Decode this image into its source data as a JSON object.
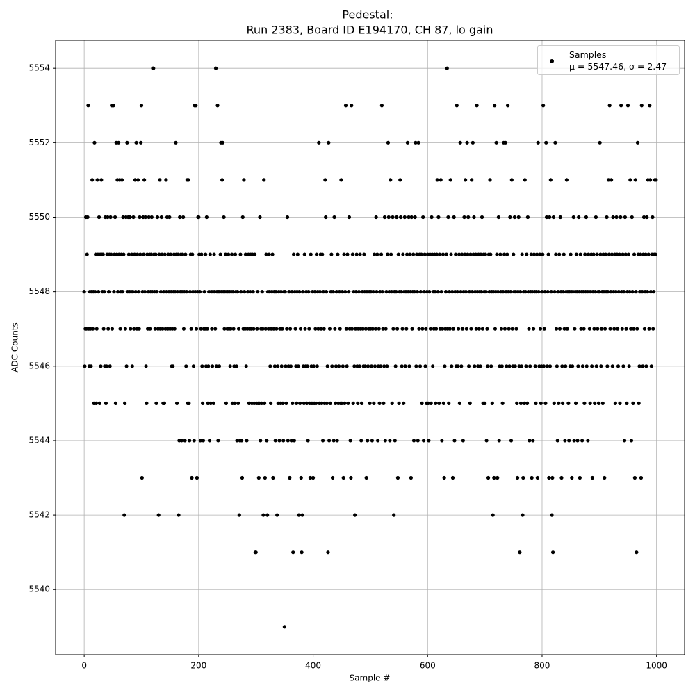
{
  "chart_data": {
    "type": "scatter",
    "title": "Pedestal:",
    "subtitle": "Run 2383, Board ID E194170, CH 87, lo gain",
    "x_label": "Sample #",
    "y_label": "ADC Counts",
    "xlim": [
      -49.95,
      1048.95
    ],
    "ylim": [
      5538.25,
      5554.75
    ],
    "xticks": [
      0,
      200,
      400,
      600,
      800,
      1000
    ],
    "yticks": [
      5540,
      5542,
      5544,
      5546,
      5548,
      5550,
      5552,
      5554
    ],
    "grid": true,
    "legend_position": "upper right",
    "series": [
      {
        "name": "Samples\nμ = 5547.46, σ = 2.47",
        "color": "#000000",
        "values": [
          5548,
          5546,
          5547,
          5550,
          5547,
          5549,
          5550,
          5553,
          5547,
          5546,
          5548,
          5547,
          5546,
          5548,
          5551,
          5547,
          5548,
          5545,
          5552,
          5548,
          5549,
          5545,
          5547,
          5551,
          5549,
          5548,
          5550,
          5545,
          5549,
          5546,
          5551,
          5549,
          5548,
          5549,
          5547,
          5548,
          5546,
          5550,
          5545,
          5546,
          5549,
          5550,
          5547,
          5548,
          5549,
          5546,
          5550,
          5549,
          5553,
          5547,
          5553,
          5553,
          5548,
          5549,
          5550,
          5545,
          5552,
          5549,
          5551,
          5548,
          5552,
          5549,
          5551,
          5547,
          5548,
          5549,
          5551,
          5548,
          5550,
          5549,
          5542,
          5545,
          5547,
          5550,
          5546,
          5552,
          5548,
          5550,
          5549,
          5548,
          5550,
          5547,
          5548,
          5549,
          5546,
          5548,
          5550,
          5547,
          5549,
          5551,
          5548,
          5552,
          5547,
          5549,
          5551,
          5548,
          5547,
          5550,
          5549,
          5552,
          5553,
          5543,
          5548,
          5550,
          5549,
          5551,
          5548,
          5550,
          5546,
          5545,
          5549,
          5547,
          5548,
          5550,
          5549,
          5547,
          5548,
          5549,
          5550,
          5548,
          5554,
          5554,
          5549,
          5548,
          5547,
          5549,
          5545,
          5548,
          5550,
          5547,
          5542,
          5549,
          5551,
          5547,
          5548,
          5550,
          5549,
          5547,
          5545,
          5548,
          5545,
          5549,
          5547,
          5551,
          5548,
          5550,
          5547,
          5549,
          5548,
          5550,
          5547,
          5549,
          5548,
          5546,
          5547,
          5546,
          5548,
          5549,
          5547,
          5548,
          5552,
          5549,
          5545,
          5548,
          5549,
          5542,
          5544,
          5550,
          5548,
          5549,
          5544,
          5548,
          5549,
          5550,
          5547,
          5548,
          5544,
          5549,
          5546,
          5548,
          5551,
          5545,
          5551,
          5545,
          5544,
          5548,
          5549,
          5547,
          5543,
          5549,
          5548,
          5546,
          5544,
          5553,
          5548,
          5553,
          5547,
          5543,
          5548,
          5550,
          5550,
          5549,
          5548,
          5544,
          5547,
          5549,
          5546,
          5545,
          5544,
          5547,
          5548,
          5547,
          5549,
          5546,
          5550,
          5547,
          5545,
          5546,
          5548,
          5544,
          5549,
          5545,
          5548,
          5547,
          5546,
          5548,
          5545,
          5549,
          5548,
          5547,
          5554,
          5546,
          5548,
          5553,
          5544,
          5548,
          5546,
          5548,
          5549,
          5552,
          5548,
          5551,
          5552,
          5548,
          5550,
          5547,
          5548,
          5549,
          5545,
          5548,
          5547,
          5548,
          5549,
          5547,
          5548,
          5546,
          5547,
          5548,
          5549,
          5545,
          5548,
          5547,
          5546,
          5545,
          5549,
          5548,
          5546,
          5544,
          5548,
          5545,
          5547,
          5542,
          5544,
          5549,
          5548,
          5544,
          5543,
          5550,
          5547,
          5551,
          5548,
          5547,
          5549,
          5546,
          5544,
          5547,
          5548,
          5549,
          5545,
          5547,
          5548,
          5549,
          5547,
          5545,
          5549,
          5548,
          5547,
          5545,
          5549,
          5541,
          5541,
          5545,
          5547,
          5548,
          5545,
          5543,
          5545,
          5550,
          5544,
          5547,
          5545,
          5548,
          5547,
          5542,
          5551,
          5545,
          5543,
          5547,
          5549,
          5544,
          5542,
          5548,
          5547,
          5549,
          5548,
          5546,
          5545,
          5547,
          5548,
          5549,
          5543,
          5547,
          5548,
          5546,
          5544,
          5548,
          5547,
          5542,
          5546,
          5545,
          5548,
          5544,
          5547,
          5545,
          5548,
          5546,
          5547,
          5545,
          5544,
          5548,
          5539,
          5548,
          5546,
          5545,
          5547,
          5550,
          5544,
          5546,
          5548,
          5543,
          5547,
          5546,
          5544,
          5548,
          5545,
          5541,
          5549,
          5544,
          5548,
          5547,
          5546,
          5545,
          5548,
          5549,
          5546,
          5542,
          5548,
          5545,
          5547,
          5543,
          5541,
          5542,
          5548,
          5546,
          5545,
          5549,
          5547,
          5546,
          5548,
          5545,
          5546,
          5544,
          5548,
          5547,
          5545,
          5543,
          5549,
          5546,
          5545,
          5548,
          5543,
          5546,
          5545,
          5548,
          5547,
          5545,
          5549,
          5546,
          5548,
          5547,
          5552,
          5545,
          5548,
          5549,
          5547,
          5545,
          5549,
          5544,
          5548,
          5547,
          5545,
          5551,
          5550,
          5548,
          5545,
          5546,
          5541,
          5552,
          5544,
          5547,
          5545,
          5548,
          5549,
          5546,
          5543,
          5548,
          5544,
          5550,
          5547,
          5545,
          5546,
          5548,
          5544,
          5549,
          5545,
          5546,
          5548,
          5547,
          5545,
          5551,
          5545,
          5548,
          5546,
          5543,
          5549,
          5545,
          5548,
          5553,
          5547,
          5546,
          5549,
          5545,
          5548,
          5550,
          5547,
          5544,
          5543,
          5553,
          5547,
          5549,
          5545,
          5548,
          5546,
          5542,
          5547,
          5548,
          5549,
          5546,
          5545,
          5547,
          5548,
          5546,
          5549,
          5547,
          5544,
          5545,
          5548,
          5547,
          5546,
          5549,
          5548,
          5546,
          5547,
          5543,
          5548,
          5544,
          5546,
          5547,
          5548,
          5545,
          5547,
          5548,
          5546,
          5544,
          5547,
          5548,
          5545,
          5549,
          5546,
          5547,
          5550,
          5548,
          5549,
          5544,
          5546,
          5547,
          5545,
          5548,
          5546,
          5549,
          5553,
          5548,
          5547,
          5545,
          5546,
          5550,
          5544,
          5547,
          5548,
          5546,
          5549,
          5552,
          5550,
          5548,
          5544,
          5551,
          5549,
          5548,
          5545,
          5550,
          5547,
          5542,
          5548,
          5544,
          5546,
          5548,
          5550,
          5547,
          5543,
          5549,
          5545,
          5548,
          5551,
          5550,
          5548,
          5546,
          5547,
          5549,
          5545,
          5548,
          5550,
          5546,
          5548,
          5547,
          5549,
          5552,
          5548,
          5550,
          5546,
          5549,
          5548,
          5543,
          5550,
          5547,
          5548,
          5549,
          5544,
          5548,
          5550,
          5552,
          5546,
          5549,
          5548,
          5544,
          5552,
          5547,
          5549,
          5546,
          5548,
          5549,
          5545,
          5547,
          5550,
          5544,
          5548,
          5549,
          5546,
          5547,
          5545,
          5548,
          5549,
          5545,
          5544,
          5548,
          5549,
          5547,
          5545,
          5550,
          5549,
          5546,
          5548,
          5547,
          5549,
          5548,
          5545,
          5547,
          5549,
          5551,
          5548,
          5550,
          5545,
          5549,
          5547,
          5551,
          5548,
          5544,
          5547,
          5549,
          5545,
          5543,
          5546,
          5547,
          5548,
          5549,
          5554,
          5547,
          5550,
          5545,
          5548,
          5547,
          5551,
          5549,
          5546,
          5548,
          5543,
          5547,
          5550,
          5544,
          5548,
          5549,
          5546,
          5553,
          5548,
          5546,
          5547,
          5549,
          5545,
          5552,
          5548,
          5546,
          5549,
          5547,
          5544,
          5548,
          5550,
          5549,
          5551,
          5548,
          5547,
          5552,
          5549,
          5550,
          5546,
          5548,
          5545,
          5549,
          5547,
          5551,
          5548,
          5552,
          5549,
          5550,
          5546,
          5548,
          5549,
          5547,
          5553,
          5548,
          5546,
          5549,
          5547,
          5548,
          5546,
          5549,
          5548,
          5550,
          5547,
          5545,
          5549,
          5548,
          5545,
          5549,
          5548,
          5544,
          5547,
          5546,
          5543,
          5549,
          5548,
          5551,
          5549,
          5546,
          5548,
          5545,
          5542,
          5548,
          5543,
          5553,
          5547,
          5548,
          5552,
          5549,
          5543,
          5548,
          5550,
          5544,
          5546,
          5549,
          5548,
          5547,
          5546,
          5545,
          5548,
          5552,
          5549,
          5547,
          5552,
          5548,
          5546,
          5549,
          5553,
          5548,
          5547,
          5546,
          5550,
          5548,
          5544,
          5551,
          5547,
          5546,
          5549,
          5548,
          5550,
          5546,
          5548,
          5547,
          5545,
          5543,
          5548,
          5550,
          5546,
          5541,
          5548,
          5545,
          5546,
          5549,
          5542,
          5543,
          5548,
          5545,
          5551,
          5548,
          5546,
          5549,
          5545,
          5550,
          5548,
          5547,
          5544,
          5546,
          5548,
          5549,
          5543,
          5548,
          5544,
          5547,
          5549,
          5548,
          5546,
          5545,
          5548,
          5549,
          5543,
          5552,
          5548,
          5546,
          5549,
          5547,
          5545,
          5546,
          5548,
          5549,
          5553,
          5546,
          5547,
          5548,
          5545,
          5552,
          5550,
          5546,
          5548,
          5549,
          5543,
          5550,
          5546,
          5551,
          5548,
          5542,
          5543,
          5541,
          5550,
          5545,
          5548,
          5552,
          5549,
          5547,
          5546,
          5544,
          5548,
          5545,
          5549,
          5547,
          5550,
          5548,
          5543,
          5546,
          5545,
          5548,
          5549,
          5547,
          5544,
          5546,
          5548,
          5551,
          5547,
          5548,
          5545,
          5544,
          5548,
          5546,
          5549,
          5548,
          5543,
          5546,
          5548,
          5550,
          5544,
          5547,
          5548,
          5545,
          5549,
          5548,
          5544,
          5546,
          5550,
          5548,
          5543,
          5549,
          5547,
          5548,
          5544,
          5546,
          5548,
          5547,
          5545,
          5549,
          5548,
          5550,
          5546,
          5548,
          5544,
          5549,
          5548,
          5547,
          5545,
          5548,
          5549,
          5546,
          5543,
          5548,
          5549,
          5547,
          5545,
          5548,
          5550,
          5546,
          5549,
          5547,
          5548,
          5545,
          5548,
          5552,
          5549,
          5546,
          5547,
          5548,
          5545,
          5549,
          5548,
          5543,
          5547,
          5549,
          5548,
          5550,
          5546,
          5548,
          5551,
          5549,
          5553,
          5547,
          5548,
          5551,
          5549,
          5546,
          5550,
          5548,
          5547,
          5549,
          5545,
          5548,
          5550,
          5549,
          5547,
          5546,
          5548,
          5549,
          5545,
          5550,
          5553,
          5548,
          5547,
          5549,
          5546,
          5548,
          5544,
          5550,
          5549,
          5547,
          5545,
          5548,
          5553,
          5549,
          5546,
          5548,
          5551,
          5547,
          5544,
          5550,
          5548,
          5545,
          5547,
          5549,
          5543,
          5551,
          5548,
          5541,
          5547,
          5552,
          5549,
          5545,
          5546,
          5548,
          5549,
          5543,
          5553,
          5548,
          5546,
          5549,
          5550,
          5547,
          5548,
          5549,
          5546,
          5550,
          5548,
          5551,
          5549,
          5547,
          5553,
          5551,
          5548,
          5546,
          5549,
          5550,
          5547,
          5548,
          5549,
          5551,
          5549,
          5551
        ]
      }
    ]
  }
}
